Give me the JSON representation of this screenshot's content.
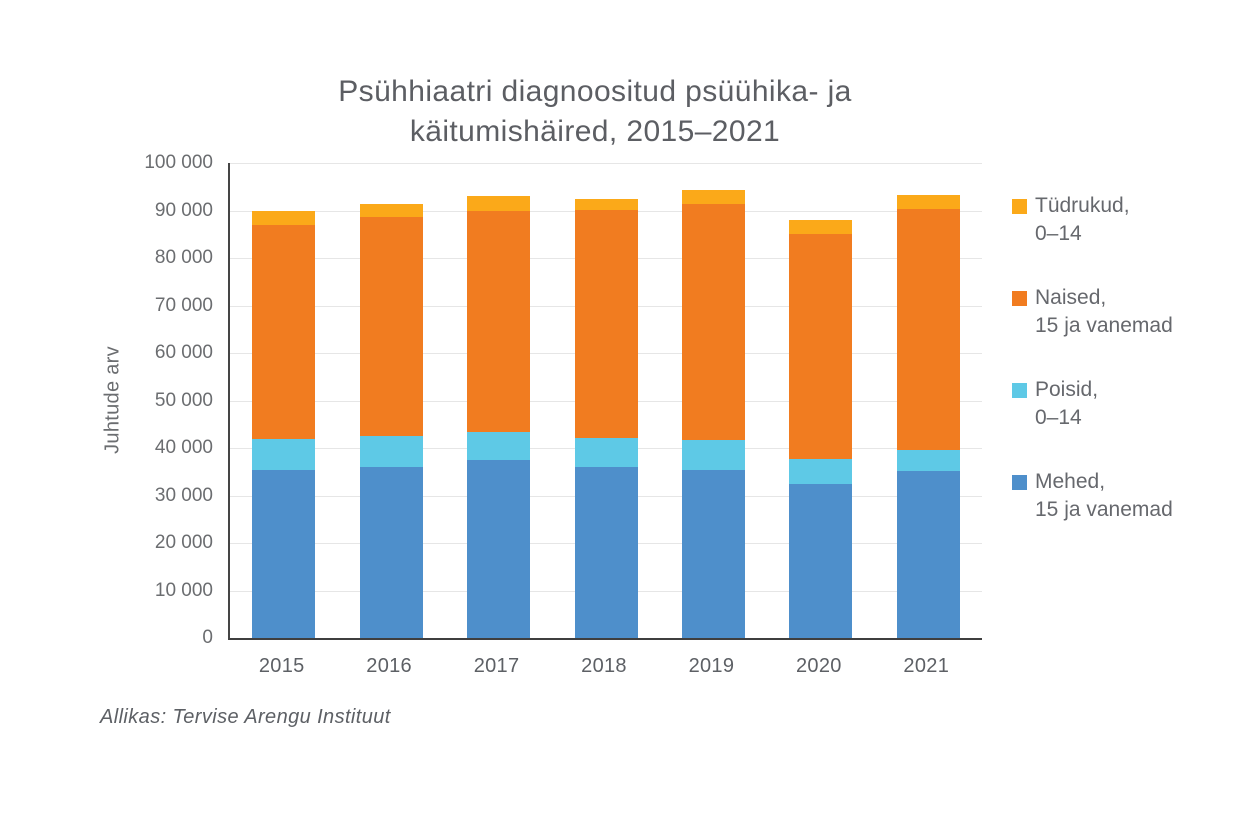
{
  "title_lines": [
    "Psühhiaatri diagnoositud psüühika- ja",
    "käitumishäired, 2015–2021"
  ],
  "source_note": "Allikas: Tervise Arengu Instituut",
  "chart_data": {
    "type": "bar",
    "stacked": true,
    "title": "Psühhiaatri diagnoositud psüühika- ja käitumishäired, 2015–2021",
    "ylabel": "Juhtude arv",
    "xlabel": "",
    "categories": [
      "2015",
      "2016",
      "2017",
      "2018",
      "2019",
      "2020",
      "2021"
    ],
    "series": [
      {
        "name": "Mehed, 15 ja vanemad",
        "color": "#4E8FCB",
        "values": [
          35300,
          36100,
          37400,
          35900,
          35400,
          32400,
          35200
        ]
      },
      {
        "name": "Poisid, 0–14",
        "color": "#5EC9E6",
        "values": [
          6700,
          6400,
          5900,
          6200,
          6200,
          5300,
          4400
        ]
      },
      {
        "name": "Naised, 15 ja vanemad",
        "color": "#F17C20",
        "values": [
          45000,
          46100,
          46600,
          48000,
          49800,
          47300,
          50700
        ]
      },
      {
        "name": "Tüdrukud, 0–14",
        "color": "#FBA919",
        "values": [
          2800,
          2800,
          3200,
          2400,
          3000,
          3000,
          3000
        ]
      }
    ],
    "totals": [
      89800,
      91400,
      93100,
      92500,
      94400,
      88000,
      93300
    ],
    "ylim": [
      0,
      100000
    ],
    "ytick_step": 10000,
    "ytick_labels": [
      "0",
      "10 000",
      "20 000",
      "30 000",
      "40 000",
      "50 000",
      "60 000",
      "70 000",
      "80 000",
      "90 000",
      "100 000"
    ],
    "grid": "horizontal",
    "legend_position": "right",
    "legend": [
      {
        "lines": [
          "Tüdrukud,",
          "0–14"
        ],
        "color": "#FBA919"
      },
      {
        "lines": [
          "Naised,",
          "15 ja vanemad"
        ],
        "color": "#F17C20"
      },
      {
        "lines": [
          "Poisid,",
          "0–14"
        ],
        "color": "#5EC9E6"
      },
      {
        "lines": [
          "Mehed,",
          "15 ja vanemad"
        ],
        "color": "#4E8FCB"
      }
    ]
  }
}
